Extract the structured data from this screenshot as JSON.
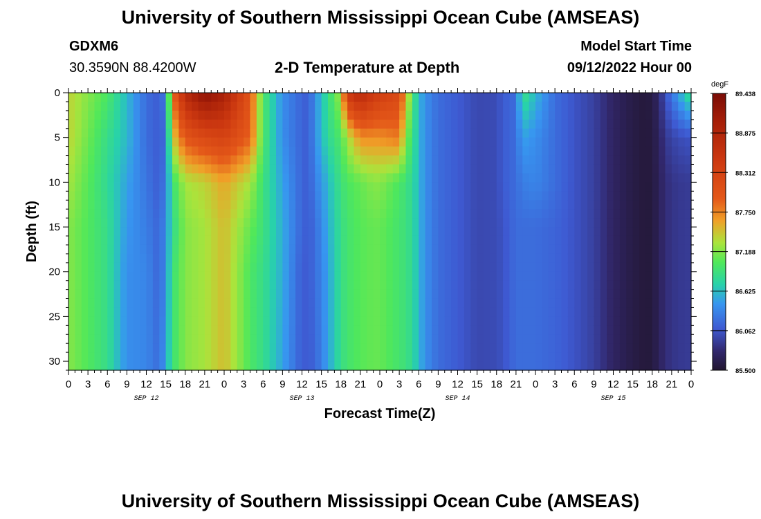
{
  "header": {
    "title": "University of Southern Mississippi Ocean Cube (AMSEAS)",
    "station_id": "GDXM6",
    "station_coords": "30.3590N  88.4200W",
    "plot_title": "2-D Temperature at Depth",
    "model_start_label": "Model Start Time",
    "model_start_value": "09/12/2022 Hour 00"
  },
  "footer": {
    "title": "University of Southern Mississippi Ocean Cube (AMSEAS)"
  },
  "chart_data": {
    "type": "heatmap",
    "xlabel": "Forecast Time(Z)",
    "ylabel": "Depth (ft)",
    "x_hours": [
      0,
      96
    ],
    "x_tick_labels": [
      "0",
      "3",
      "6",
      "9",
      "12",
      "15",
      "18",
      "21",
      "0",
      "3",
      "6",
      "9",
      "12",
      "15",
      "18",
      "21",
      "0",
      "3",
      "6",
      "9",
      "12",
      "15",
      "18",
      "21",
      "0",
      "3",
      "6",
      "9",
      "12",
      "15",
      "18",
      "21",
      "0"
    ],
    "date_labels": [
      {
        "label": "SEP 12",
        "hour": 12
      },
      {
        "label": "SEP 13",
        "hour": 36
      },
      {
        "label": "SEP 14",
        "hour": 60
      },
      {
        "label": "SEP 15",
        "hour": 84
      }
    ],
    "y_ticks": [
      0,
      5,
      10,
      15,
      20,
      25,
      30
    ],
    "ylim": [
      0,
      31
    ],
    "y_inverted": true,
    "colorbar": {
      "unit": "degF",
      "min": 85.5,
      "max": 89.438,
      "tick_labels": [
        "89.438",
        "88.875",
        "88.312",
        "87.750",
        "87.188",
        "86.625",
        "86.062",
        "85.500"
      ]
    },
    "profile_hours": [
      0,
      6,
      9,
      12,
      14,
      15,
      16,
      18,
      21,
      24,
      28,
      30,
      33,
      36,
      37,
      38,
      40,
      42,
      43,
      45,
      47,
      48,
      51,
      52,
      53,
      54,
      55,
      57,
      60,
      63,
      66,
      67,
      69,
      70,
      72,
      75,
      78,
      81,
      84,
      87,
      89,
      90,
      91,
      92,
      93,
      94,
      96
    ],
    "profile_depths_ft": [
      0,
      5,
      10,
      15,
      20,
      31
    ],
    "temperature_degF": [
      [
        87.4,
        87.4,
        87.3,
        87.2,
        87.2,
        87.2
      ],
      [
        87.0,
        86.85,
        86.8,
        86.85,
        86.85,
        86.85
      ],
      [
        86.6,
        86.6,
        86.5,
        86.45,
        86.4,
        86.4
      ],
      [
        86.2,
        86.2,
        86.25,
        86.3,
        86.35,
        86.35
      ],
      [
        86.1,
        86.1,
        86.1,
        86.15,
        86.15,
        86.2
      ],
      [
        86.3,
        86.2,
        86.3,
        86.4,
        86.4,
        86.5
      ],
      [
        87.8,
        87.4,
        86.9,
        86.8,
        86.9,
        86.9
      ],
      [
        88.8,
        88.0,
        87.3,
        87.2,
        87.2,
        87.2
      ],
      [
        89.3,
        88.2,
        87.4,
        87.3,
        87.3,
        87.3
      ],
      [
        89.0,
        88.3,
        87.6,
        87.5,
        87.5,
        87.5
      ],
      [
        88.0,
        87.9,
        87.3,
        87.1,
        87.0,
        87.0
      ],
      [
        87.0,
        87.0,
        86.9,
        86.9,
        86.85,
        86.85
      ],
      [
        86.4,
        86.4,
        86.5,
        86.55,
        86.55,
        86.5
      ],
      [
        86.15,
        86.15,
        86.15,
        86.15,
        86.1,
        86.1
      ],
      [
        86.1,
        86.1,
        86.1,
        86.1,
        86.1,
        86.1
      ],
      [
        86.4,
        86.4,
        86.3,
        86.2,
        86.2,
        86.15
      ],
      [
        86.85,
        86.8,
        86.6,
        86.55,
        86.5,
        86.5
      ],
      [
        87.3,
        87.0,
        86.9,
        86.85,
        86.85,
        86.85
      ],
      [
        88.5,
        87.3,
        87.0,
        86.95,
        86.95,
        86.95
      ],
      [
        88.8,
        87.7,
        87.1,
        87.05,
        87.05,
        87.05
      ],
      [
        88.5,
        87.7,
        87.2,
        87.1,
        87.1,
        87.1
      ],
      [
        88.4,
        87.7,
        87.2,
        87.1,
        87.1,
        87.1
      ],
      [
        88.2,
        87.8,
        87.0,
        86.95,
        86.95,
        86.95
      ],
      [
        87.6,
        87.2,
        86.9,
        86.9,
        86.9,
        86.9
      ],
      [
        87.0,
        86.9,
        86.8,
        86.8,
        86.8,
        86.8
      ],
      [
        86.6,
        86.6,
        86.6,
        86.6,
        86.6,
        86.6
      ],
      [
        86.4,
        86.4,
        86.4,
        86.4,
        86.4,
        86.4
      ],
      [
        86.2,
        86.2,
        86.2,
        86.2,
        86.2,
        86.2
      ],
      [
        86.1,
        86.1,
        86.1,
        86.1,
        86.1,
        86.1
      ],
      [
        85.98,
        85.98,
        85.98,
        85.98,
        85.98,
        85.98
      ],
      [
        86.0,
        86.0,
        86.0,
        86.0,
        86.0,
        86.0
      ],
      [
        86.1,
        86.1,
        86.1,
        86.05,
        86.05,
        86.05
      ],
      [
        86.2,
        86.2,
        86.2,
        86.2,
        86.2,
        86.2
      ],
      [
        86.9,
        86.5,
        86.3,
        86.2,
        86.2,
        86.2
      ],
      [
        86.6,
        86.4,
        86.35,
        86.2,
        86.2,
        86.2
      ],
      [
        86.2,
        86.2,
        86.2,
        86.15,
        86.15,
        86.15
      ],
      [
        86.05,
        86.05,
        86.05,
        86.05,
        86.05,
        86.05
      ],
      [
        85.93,
        85.93,
        85.93,
        85.93,
        85.93,
        85.93
      ],
      [
        85.72,
        85.72,
        85.72,
        85.72,
        85.72,
        85.72
      ],
      [
        85.6,
        85.6,
        85.6,
        85.6,
        85.6,
        85.6
      ],
      [
        85.55,
        85.55,
        85.55,
        85.55,
        85.55,
        85.55
      ],
      [
        85.6,
        85.58,
        85.57,
        85.57,
        85.57,
        85.57
      ],
      [
        85.75,
        85.7,
        85.68,
        85.68,
        85.68,
        85.68
      ],
      [
        86.05,
        85.88,
        85.8,
        85.8,
        85.8,
        85.8
      ],
      [
        86.25,
        85.95,
        85.85,
        85.85,
        85.85,
        85.85
      ],
      [
        86.5,
        86.0,
        85.88,
        85.88,
        85.88,
        85.88
      ],
      [
        86.9,
        86.05,
        85.9,
        85.9,
        85.9,
        85.9
      ]
    ]
  }
}
